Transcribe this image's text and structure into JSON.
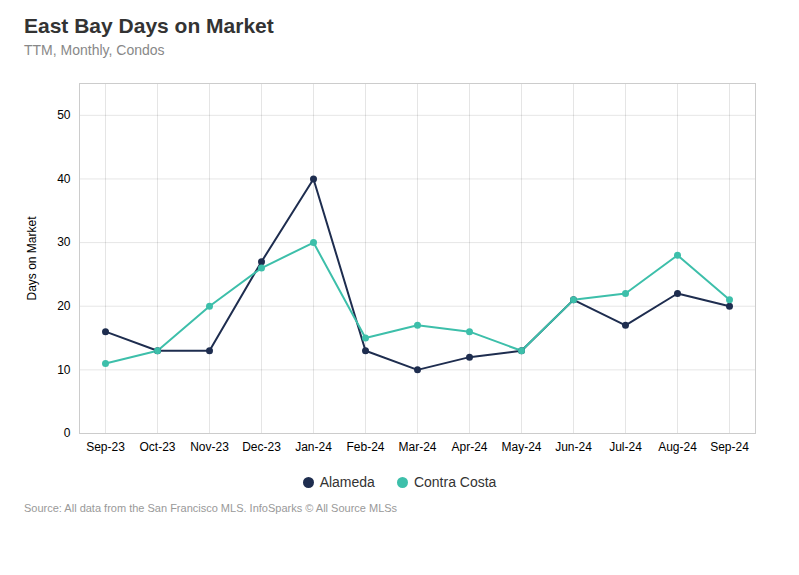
{
  "chart_data": {
    "type": "line",
    "title": "East Bay Days on Market",
    "subtitle": "TTM, Monthly, Condos",
    "ylabel": "Days on Market",
    "source": "Source:  All data from the San Francisco MLS. InfoSparks © All Source MLSs",
    "categories": [
      "Sep-23",
      "Oct-23",
      "Nov-23",
      "Dec-23",
      "Jan-24",
      "Feb-24",
      "Mar-24",
      "Apr-24",
      "May-24",
      "Jun-24",
      "Jul-24",
      "Aug-24",
      "Sep-24"
    ],
    "series": [
      {
        "name": "Alameda",
        "color": "#1e2d4f",
        "values": [
          16,
          13,
          13,
          27,
          40,
          13,
          10,
          12,
          13,
          21,
          17,
          22,
          20
        ]
      },
      {
        "name": "Contra Costa",
        "color": "#3dbfaa",
        "values": [
          11,
          13,
          20,
          26,
          30,
          15,
          17,
          16,
          13,
          21,
          22,
          28,
          21
        ]
      }
    ],
    "ylim": [
      0,
      55
    ],
    "yticks": [
      0,
      10,
      20,
      30,
      40,
      50
    ],
    "grid": true,
    "legend": "bottom",
    "marker": "circle"
  }
}
